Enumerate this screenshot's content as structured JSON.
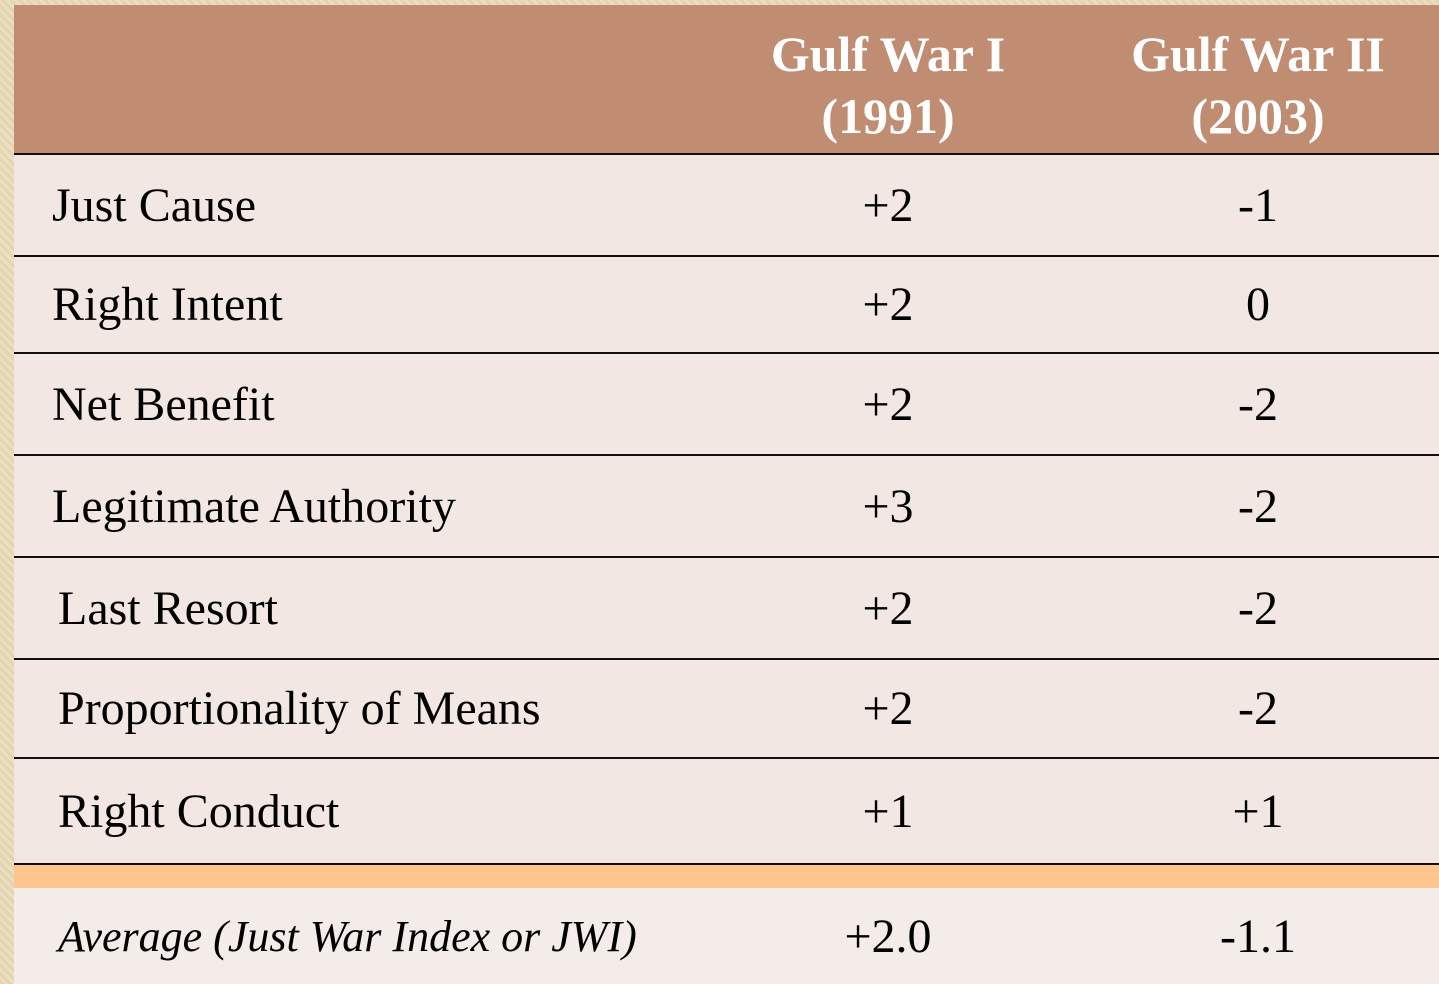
{
  "table": {
    "columns": [
      {
        "name": "Gulf War I",
        "period": "(1991)"
      },
      {
        "name": "Gulf War II",
        "period": "(2003)"
      }
    ],
    "rows": [
      {
        "label": "Just Cause",
        "values": [
          "+2",
          "-1"
        ]
      },
      {
        "label": "Right Intent",
        "values": [
          "+2",
          "0"
        ]
      },
      {
        "label": "Net Benefit",
        "values": [
          "+2",
          "-2"
        ]
      },
      {
        "label": "Legitimate Authority",
        "values": [
          "+3",
          "-2"
        ]
      },
      {
        "label": "Last Resort",
        "values": [
          "+2",
          "-2"
        ]
      },
      {
        "label": "Proportionality of Means",
        "values": [
          "+2",
          "-2"
        ]
      },
      {
        "label": "Right Conduct",
        "values": [
          "+1",
          "+1"
        ]
      }
    ],
    "average": {
      "label": "Average (Just War Index or JWI)",
      "values": [
        "+2.0",
        "-1.1"
      ]
    }
  }
}
